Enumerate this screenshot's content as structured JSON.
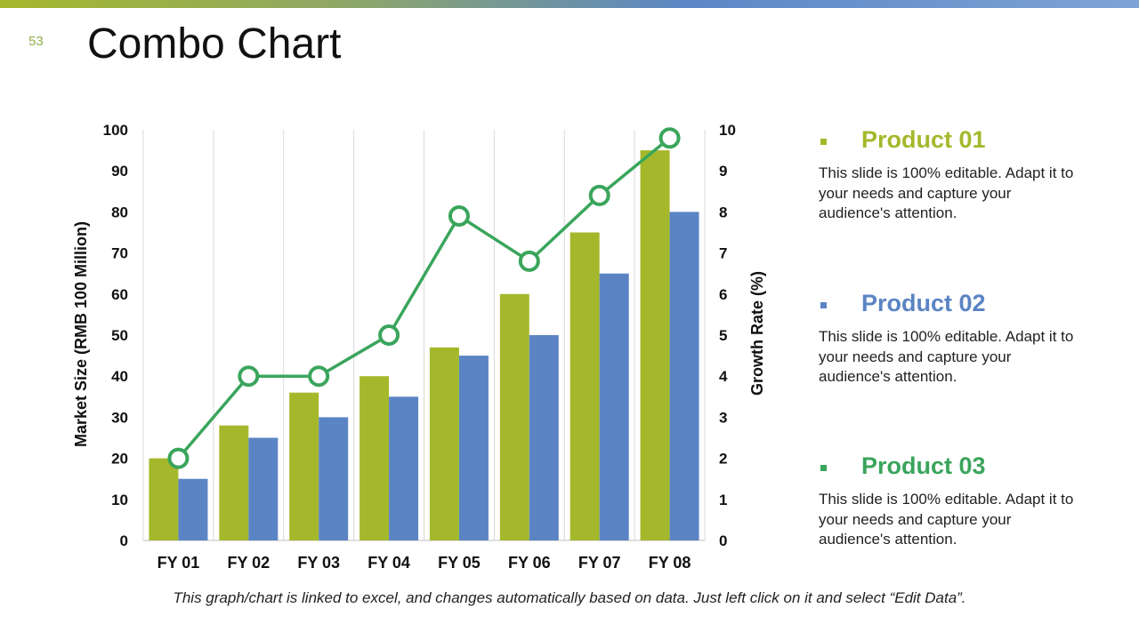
{
  "slide": {
    "number": "53",
    "title": "Combo Chart",
    "footer_note": "This graph/chart is linked to excel, and changes automatically based on data. Just left click on it and select “Edit Data”."
  },
  "colors": {
    "bar1": "#a5b82c",
    "bar2": "#5b84c4",
    "line": "#3aa55c",
    "grid": "#d9d9d9",
    "product1_title": "#a5b82c",
    "product2_title": "#5b84c4",
    "product3_title": "#3aa55c"
  },
  "products": [
    {
      "title": "Product 01",
      "desc": "This slide is 100% editable. Adapt it to your needs and capture your audience's attention."
    },
    {
      "title": "Product 02",
      "desc": "This slide is 100% editable. Adapt it to your needs and capture your audience's attention."
    },
    {
      "title": "Product 03",
      "desc": "This slide is 100% editable. Adapt it to your needs and capture your audience's attention."
    }
  ],
  "chart_data": {
    "type": "bar",
    "title": "Combo Chart",
    "categories": [
      "FY 01",
      "FY 02",
      "FY 03",
      "FY 04",
      "FY 05",
      "FY 06",
      "FY 07",
      "FY 08"
    ],
    "series": [
      {
        "name": "Product 01",
        "type": "bar",
        "axis": "left",
        "values": [
          20,
          28,
          36,
          40,
          47,
          60,
          75,
          95
        ]
      },
      {
        "name": "Product 02",
        "type": "bar",
        "axis": "left",
        "values": [
          15,
          25,
          30,
          35,
          45,
          50,
          65,
          80
        ]
      },
      {
        "name": "Product 03",
        "type": "line",
        "axis": "right",
        "values": [
          2,
          4,
          4,
          5,
          7.9,
          6.8,
          8.4,
          9.8
        ]
      }
    ],
    "ylabel": "Market Size (RMB 100 Million)",
    "ylabel_right": "Growth Rate (%)",
    "ylim": [
      0,
      100
    ],
    "yticks": [
      "0",
      "10",
      "20",
      "30",
      "40",
      "50",
      "60",
      "70",
      "80",
      "90",
      "100"
    ],
    "ylim_right": [
      0,
      10
    ],
    "yticks_right": [
      "0",
      "1",
      "2",
      "3",
      "4",
      "5",
      "6",
      "7",
      "8",
      "9",
      "10"
    ],
    "grid": "vertical"
  }
}
